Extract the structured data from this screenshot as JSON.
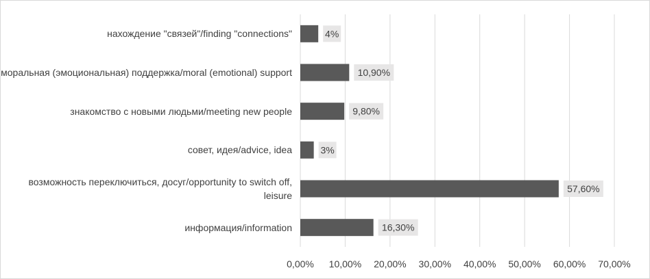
{
  "chart_data": {
    "type": "bar",
    "orientation": "horizontal",
    "categories": [
      "нахождение \"связей\"/finding \"connections\"",
      "моральная (эмоциональная) поддержка/moral (emotional) support",
      "знакомство с новыми людьми/meeting new people",
      "совет, идея/advice, idea",
      "возможность переключиться, досуг/opportunity to switch off, leisure",
      "информация/information"
    ],
    "values": [
      4,
      10.9,
      9.8,
      3,
      57.6,
      16.3
    ],
    "data_labels": [
      "4%",
      "10,90%",
      "9,80%",
      "3%",
      "57,60%",
      "16,30%"
    ],
    "xlim": [
      0,
      70
    ],
    "x_ticks": [
      0,
      10,
      20,
      30,
      40,
      50,
      60,
      70
    ],
    "x_tick_labels": [
      "0,00%",
      "10,00%",
      "20,00%",
      "30,00%",
      "40,00%",
      "50,00%",
      "60,00%",
      "70,00%"
    ],
    "title": "",
    "xlabel": "",
    "ylabel": "",
    "grid": "vertical",
    "legend": "none",
    "bar_color": "#595959",
    "label_bg_color": "#e7e6e6",
    "grid_color": "#d9d9d9"
  }
}
